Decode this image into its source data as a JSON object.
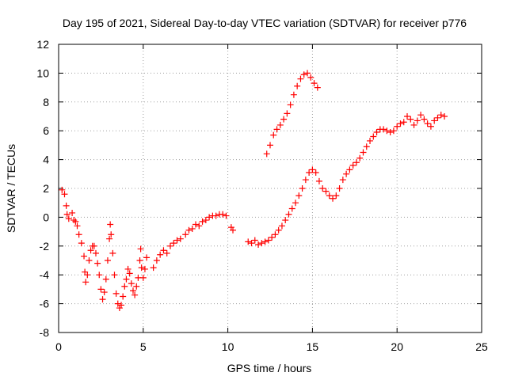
{
  "chart_data": {
    "type": "scatter",
    "title": "Day 195 of 2021, Sidereal Day-to-day VTEC variation (SDTVAR) for receiver p776",
    "xlabel": "GPS time / hours",
    "ylabel": "SDTVAR / TECUs",
    "xlim": [
      0,
      25
    ],
    "ylim": [
      -8,
      12
    ],
    "xticks": [
      0,
      5,
      10,
      15,
      20,
      25
    ],
    "yticks": [
      -8,
      -6,
      -4,
      -2,
      0,
      2,
      4,
      6,
      8,
      10,
      12
    ],
    "grid": true,
    "marker": "+",
    "color": "#ff0000",
    "series": [
      {
        "values": [
          [
            0.2,
            1.9
          ],
          [
            0.35,
            1.6
          ],
          [
            0.45,
            0.8
          ],
          [
            0.5,
            0.2
          ],
          [
            0.6,
            -0.1
          ],
          [
            0.8,
            0.3
          ],
          [
            0.9,
            -0.2
          ],
          [
            1.0,
            -0.3
          ],
          [
            1.1,
            -0.6
          ],
          [
            1.2,
            -1.2
          ],
          [
            1.35,
            -1.8
          ],
          [
            1.5,
            -2.7
          ],
          [
            1.55,
            -3.8
          ],
          [
            1.6,
            -4.5
          ],
          [
            1.7,
            -4.0
          ],
          [
            1.8,
            -3.0
          ],
          [
            1.9,
            -2.3
          ],
          [
            2.0,
            -2.0
          ],
          [
            2.1,
            -2.0
          ],
          [
            2.2,
            -2.5
          ],
          [
            2.3,
            -3.2
          ],
          [
            2.4,
            -4.0
          ],
          [
            2.5,
            -5.0
          ],
          [
            2.6,
            -5.7
          ],
          [
            2.7,
            -5.2
          ],
          [
            2.8,
            -4.3
          ],
          [
            2.9,
            -3.0
          ],
          [
            3.0,
            -1.5
          ],
          [
            3.05,
            -0.5
          ],
          [
            3.1,
            -1.2
          ],
          [
            3.2,
            -2.5
          ],
          [
            3.3,
            -4.0
          ],
          [
            3.4,
            -5.3
          ],
          [
            3.5,
            -6.0
          ],
          [
            3.6,
            -6.3
          ],
          [
            3.7,
            -6.1
          ],
          [
            3.8,
            -5.5
          ],
          [
            3.9,
            -4.8
          ],
          [
            4.0,
            -4.3
          ],
          [
            4.1,
            -3.6
          ],
          [
            4.2,
            -3.9
          ],
          [
            4.3,
            -4.6
          ],
          [
            4.4,
            -5.1
          ],
          [
            4.5,
            -5.4
          ],
          [
            4.6,
            -4.8
          ],
          [
            4.7,
            -4.2
          ],
          [
            4.8,
            -3.0
          ],
          [
            4.85,
            -2.2
          ],
          [
            4.9,
            -3.5
          ],
          [
            5.0,
            -4.2
          ],
          [
            5.1,
            -3.6
          ],
          [
            5.2,
            -2.8
          ],
          [
            5.6,
            -3.5
          ],
          [
            5.8,
            -3.0
          ],
          [
            6.0,
            -2.6
          ],
          [
            6.2,
            -2.3
          ],
          [
            6.4,
            -2.5
          ],
          [
            6.6,
            -2.0
          ],
          [
            6.8,
            -1.8
          ],
          [
            7.0,
            -1.6
          ],
          [
            7.2,
            -1.5
          ],
          [
            7.5,
            -1.2
          ],
          [
            7.7,
            -0.9
          ],
          [
            7.9,
            -0.8
          ],
          [
            8.1,
            -0.5
          ],
          [
            8.3,
            -0.6
          ],
          [
            8.5,
            -0.3
          ],
          [
            8.7,
            -0.2
          ],
          [
            8.9,
            0.0
          ],
          [
            9.1,
            0.1
          ],
          [
            9.3,
            0.1
          ],
          [
            9.5,
            0.2
          ],
          [
            9.7,
            0.2
          ],
          [
            9.9,
            0.1
          ],
          [
            10.2,
            -0.7
          ],
          [
            10.3,
            -0.9
          ],
          [
            11.2,
            -1.7
          ],
          [
            11.4,
            -1.8
          ],
          [
            11.6,
            -1.6
          ],
          [
            11.8,
            -1.9
          ],
          [
            12.0,
            -1.8
          ],
          [
            12.2,
            -1.7
          ],
          [
            12.4,
            -1.6
          ],
          [
            12.6,
            -1.4
          ],
          [
            12.8,
            -1.2
          ],
          [
            13.0,
            -0.9
          ],
          [
            13.2,
            -0.6
          ],
          [
            13.4,
            -0.2
          ],
          [
            13.6,
            0.2
          ],
          [
            13.8,
            0.6
          ],
          [
            14.0,
            1.0
          ],
          [
            14.2,
            1.5
          ],
          [
            14.4,
            2.0
          ],
          [
            14.6,
            2.6
          ],
          [
            14.8,
            3.1
          ],
          [
            15.0,
            3.3
          ],
          [
            15.2,
            3.1
          ],
          [
            15.4,
            2.5
          ],
          [
            15.6,
            2.0
          ],
          [
            15.8,
            1.8
          ],
          [
            16.0,
            1.5
          ],
          [
            16.2,
            1.3
          ],
          [
            16.4,
            1.5
          ],
          [
            16.6,
            2.0
          ],
          [
            16.8,
            2.6
          ],
          [
            17.0,
            3.0
          ],
          [
            17.2,
            3.3
          ],
          [
            17.4,
            3.6
          ],
          [
            17.6,
            3.8
          ],
          [
            17.8,
            4.1
          ],
          [
            18.0,
            4.5
          ],
          [
            18.2,
            4.9
          ],
          [
            18.4,
            5.3
          ],
          [
            18.6,
            5.6
          ],
          [
            18.8,
            5.9
          ],
          [
            19.0,
            6.1
          ],
          [
            19.2,
            6.1
          ],
          [
            19.4,
            6.0
          ],
          [
            19.6,
            5.9
          ],
          [
            19.8,
            6.0
          ],
          [
            20.0,
            6.3
          ],
          [
            20.2,
            6.5
          ],
          [
            20.4,
            6.6
          ],
          [
            20.6,
            7.0
          ],
          [
            20.8,
            6.8
          ],
          [
            21.0,
            6.4
          ],
          [
            21.2,
            6.7
          ],
          [
            21.4,
            7.1
          ],
          [
            21.6,
            6.8
          ],
          [
            21.8,
            6.5
          ],
          [
            22.0,
            6.3
          ],
          [
            22.2,
            6.7
          ],
          [
            22.4,
            6.9
          ],
          [
            22.6,
            7.1
          ],
          [
            22.8,
            7.0
          ],
          [
            12.3,
            4.4
          ],
          [
            12.5,
            5.0
          ],
          [
            12.7,
            5.7
          ],
          [
            12.9,
            6.1
          ],
          [
            13.1,
            6.4
          ],
          [
            13.3,
            6.8
          ],
          [
            13.5,
            7.2
          ],
          [
            13.7,
            7.8
          ],
          [
            13.9,
            8.5
          ],
          [
            14.1,
            9.1
          ],
          [
            14.3,
            9.6
          ],
          [
            14.5,
            9.9
          ],
          [
            14.7,
            10.0
          ],
          [
            14.9,
            9.7
          ],
          [
            15.1,
            9.3
          ],
          [
            15.3,
            9.0
          ]
        ]
      }
    ]
  }
}
